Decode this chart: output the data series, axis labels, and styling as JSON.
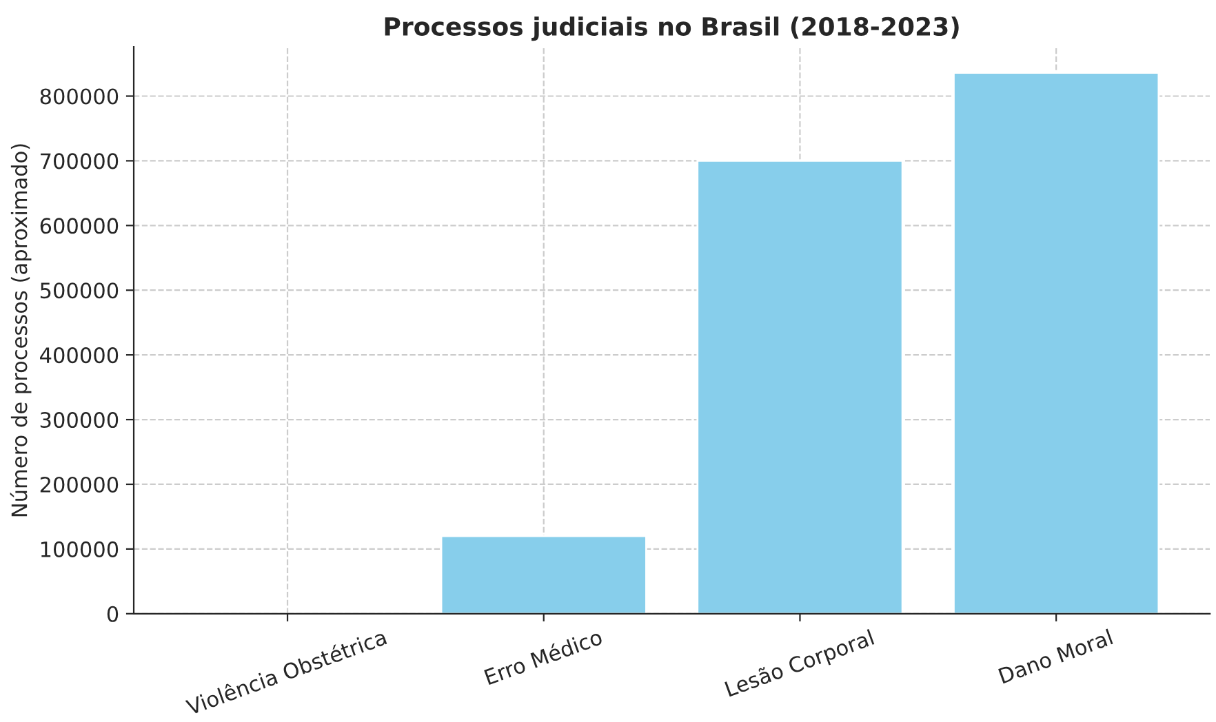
{
  "chart_data": {
    "type": "bar",
    "title": "Processos judiciais no Brasil (2018-2023)",
    "ylabel": "Número de processos (aproximado)",
    "categories": [
      "Violência Obstétrica",
      "Erro Médico",
      "Lesão Corporal",
      "Dano Moral"
    ],
    "values": [
      null,
      120000,
      700000,
      836000
    ],
    "color": "#87ceeb",
    "ylim": [
      0,
      876000
    ],
    "yticks": [
      0,
      100000,
      200000,
      300000,
      400000,
      500000,
      600000,
      700000,
      800000
    ],
    "grid": true
  }
}
